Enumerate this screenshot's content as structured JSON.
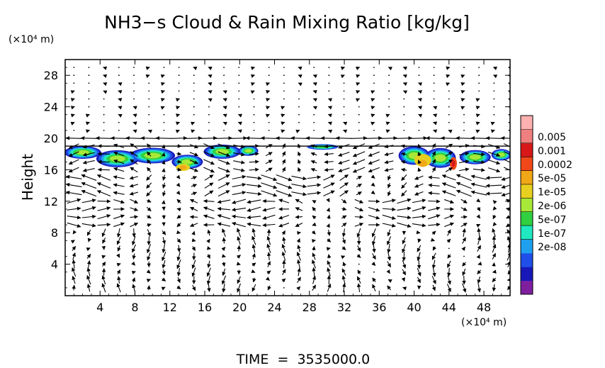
{
  "chart_data": {
    "type": "heatmap",
    "title": "NH3−s Cloud & Rain Mixing Ratio [kg/kg]",
    "ylabel": "Height",
    "y_unit": "(×10⁴ m)",
    "x_unit": "(×10⁴ m)",
    "footer": "TIME  =  3535000.0",
    "xlim": [
      0,
      51
    ],
    "ylim": [
      0,
      30
    ],
    "x_ticks": [
      "4",
      "8",
      "12",
      "16",
      "20",
      "24",
      "28",
      "32",
      "36",
      "40",
      "44",
      "48"
    ],
    "y_ticks": [
      "4",
      "8",
      "12",
      "16",
      "20",
      "24",
      "28"
    ],
    "tropopause_line_y": 19,
    "grid": false,
    "colorbar": {
      "labels": [
        "0.005",
        "0.001",
        "0.0002",
        "5e-05",
        "1e-05",
        "2e-06",
        "5e-07",
        "1e-07",
        "2e-08"
      ],
      "colors": [
        "#7f1f9f",
        "#1818b8",
        "#1f4fe8",
        "#1fa0ef",
        "#20e8c0",
        "#30d040",
        "#a8e838",
        "#e8d020",
        "#f0a818",
        "#f04818",
        "#d81818",
        "#f08080",
        "#ffb0b0"
      ]
    },
    "cloud_regions": [
      {
        "x_range": [
          0,
          22
        ],
        "y_range": [
          16.5,
          19
        ],
        "max_level": "5e-05",
        "peak_x": 13.5,
        "peak_y": 16.3,
        "peak_value": "0.0002"
      },
      {
        "x_range": [
          27.5,
          31.5
        ],
        "y_range": [
          18.4,
          19.2
        ],
        "max_level": "1e-05"
      },
      {
        "x_range": [
          37,
          51
        ],
        "y_range": [
          15.8,
          19.2
        ],
        "max_level": "0.0002",
        "peak_x": 44.5,
        "peak_y": 16.8,
        "peak_value": "0.001"
      }
    ],
    "wind_vectors_note": "arrow field overlaid on grid, strong horizontal flow near heights 9, 14, 16, 20"
  }
}
